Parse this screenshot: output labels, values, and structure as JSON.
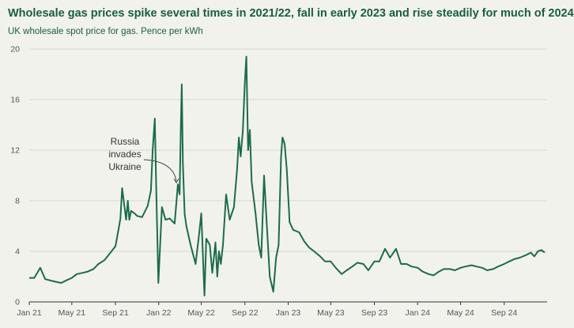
{
  "header": {
    "title": "Wholesale gas prices spike several times in 2021/22, fall in early 2023 and rise steadily for much of 2024",
    "subtitle": "UK wholesale spot price for gas. Pence per kWh"
  },
  "colors": {
    "line": "#1a6d4b",
    "grid": "#d8d8d2",
    "axis": "#333333",
    "background": "#f2f2ed"
  },
  "chart_data": {
    "type": "line",
    "title": "Wholesale gas prices spike several times in 2021/22, fall in early 2023 and rise steadily for much of 2024",
    "subtitle": "UK wholesale spot price for gas. Pence per kWh",
    "xlabel": "",
    "ylabel": "",
    "ylim": [
      0,
      20
    ],
    "yticks": [
      0,
      4,
      8,
      12,
      16,
      20
    ],
    "ytick_labels": [
      "0",
      "4",
      "8",
      "12",
      "16",
      "20"
    ],
    "xlim": [
      "2021-01-01",
      "2024-12-31"
    ],
    "xticks": [
      "2021-01-01",
      "2021-05-01",
      "2021-09-01",
      "2022-01-01",
      "2022-05-01",
      "2022-09-01",
      "2023-01-01",
      "2023-05-01",
      "2023-09-01",
      "2024-01-01",
      "2024-05-01",
      "2024-09-01"
    ],
    "xtick_labels": [
      "Jan 21",
      "May 21",
      "Sep 21",
      "Jan 22",
      "May 22",
      "Sep 22",
      "Jan 23",
      "May 23",
      "Sep 23",
      "Jan 24",
      "May 24",
      "Sep 24"
    ],
    "grid": "horizontal",
    "legend": "none",
    "annotations": [
      {
        "text": "Russia\ninvades\nUkraine",
        "date": "2022-02-24",
        "value": 9.3
      }
    ],
    "series": [
      {
        "x": [
          "2021-01-01",
          "2021-01-15",
          "2021-02-01",
          "2021-02-15",
          "2021-03-01",
          "2021-03-15",
          "2021-04-01",
          "2021-04-15",
          "2021-05-01",
          "2021-05-15",
          "2021-06-01",
          "2021-06-15",
          "2021-07-01",
          "2021-07-15",
          "2021-08-01",
          "2021-08-15",
          "2021-09-01",
          "2021-09-10",
          "2021-09-15",
          "2021-09-20",
          "2021-10-01",
          "2021-10-06",
          "2021-10-10",
          "2021-10-15",
          "2021-10-25",
          "2021-11-01",
          "2021-11-15",
          "2021-12-01",
          "2021-12-10",
          "2021-12-15",
          "2021-12-21",
          "2021-12-25",
          "2021-12-31",
          "2022-01-10",
          "2022-01-20",
          "2022-02-01",
          "2022-02-15",
          "2022-02-24",
          "2022-03-01",
          "2022-03-04",
          "2022-03-07",
          "2022-03-10",
          "2022-03-15",
          "2022-03-20",
          "2022-04-01",
          "2022-04-15",
          "2022-04-25",
          "2022-05-01",
          "2022-05-10",
          "2022-05-15",
          "2022-05-25",
          "2022-06-01",
          "2022-06-10",
          "2022-06-15",
          "2022-06-20",
          "2022-06-25",
          "2022-07-01",
          "2022-07-10",
          "2022-07-20",
          "2022-08-01",
          "2022-08-10",
          "2022-08-15",
          "2022-08-20",
          "2022-08-26",
          "2022-09-01",
          "2022-09-05",
          "2022-09-10",
          "2022-09-15",
          "2022-09-20",
          "2022-10-01",
          "2022-10-10",
          "2022-10-17",
          "2022-10-25",
          "2022-11-01",
          "2022-11-10",
          "2022-11-20",
          "2022-11-28",
          "2022-12-05",
          "2022-12-12",
          "2022-12-16",
          "2022-12-22",
          "2022-12-28",
          "2023-01-05",
          "2023-01-15",
          "2023-02-01",
          "2023-02-15",
          "2023-03-01",
          "2023-03-15",
          "2023-04-01",
          "2023-04-15",
          "2023-05-01",
          "2023-05-15",
          "2023-06-01",
          "2023-06-15",
          "2023-07-01",
          "2023-07-15",
          "2023-08-01",
          "2023-08-15",
          "2023-09-01",
          "2023-09-15",
          "2023-10-01",
          "2023-10-15",
          "2023-11-01",
          "2023-11-15",
          "2023-12-01",
          "2023-12-15",
          "2024-01-01",
          "2024-01-15",
          "2024-02-01",
          "2024-02-15",
          "2024-03-01",
          "2024-03-15",
          "2024-04-01",
          "2024-04-15",
          "2024-05-01",
          "2024-05-15",
          "2024-06-01",
          "2024-06-15",
          "2024-07-01",
          "2024-07-15",
          "2024-08-01",
          "2024-08-15",
          "2024-09-01",
          "2024-09-15",
          "2024-10-01",
          "2024-10-15",
          "2024-11-01",
          "2024-11-15",
          "2024-11-25",
          "2024-12-05",
          "2024-12-15",
          "2024-12-24"
        ],
        "values": [
          1.9,
          1.9,
          2.7,
          1.8,
          1.7,
          1.6,
          1.5,
          1.7,
          1.9,
          2.2,
          2.3,
          2.4,
          2.6,
          3.0,
          3.3,
          3.8,
          4.4,
          5.8,
          6.6,
          9.0,
          6.5,
          8.0,
          6.5,
          7.2,
          7.0,
          6.8,
          6.7,
          7.6,
          8.8,
          12.0,
          14.5,
          9.0,
          1.5,
          7.5,
          6.5,
          6.6,
          6.2,
          9.3,
          8.5,
          13.5,
          17.2,
          11.0,
          7.0,
          6.0,
          4.5,
          3.0,
          5.4,
          7.0,
          0.5,
          5.0,
          4.5,
          2.3,
          4.7,
          2.0,
          4.0,
          3.0,
          4.5,
          8.5,
          6.5,
          7.5,
          10.5,
          13.0,
          11.5,
          13.5,
          17.5,
          19.4,
          12.0,
          13.6,
          9.5,
          7.0,
          4.5,
          3.5,
          10.0,
          6.5,
          2.0,
          0.8,
          3.5,
          4.5,
          11.5,
          13.0,
          12.5,
          10.5,
          6.3,
          5.7,
          5.5,
          4.8,
          4.3,
          4.0,
          3.6,
          3.2,
          3.2,
          2.7,
          2.2,
          2.5,
          2.8,
          3.1,
          3.0,
          2.5,
          3.2,
          3.2,
          4.2,
          3.5,
          4.2,
          3.0,
          3.0,
          2.8,
          2.7,
          2.4,
          2.2,
          2.1,
          2.4,
          2.6,
          2.6,
          2.5,
          2.7,
          2.8,
          2.9,
          2.8,
          2.7,
          2.5,
          2.6,
          2.8,
          3.0,
          3.2,
          3.4,
          3.5,
          3.7,
          3.9,
          3.6,
          4.0,
          4.1,
          3.9
        ]
      }
    ]
  }
}
